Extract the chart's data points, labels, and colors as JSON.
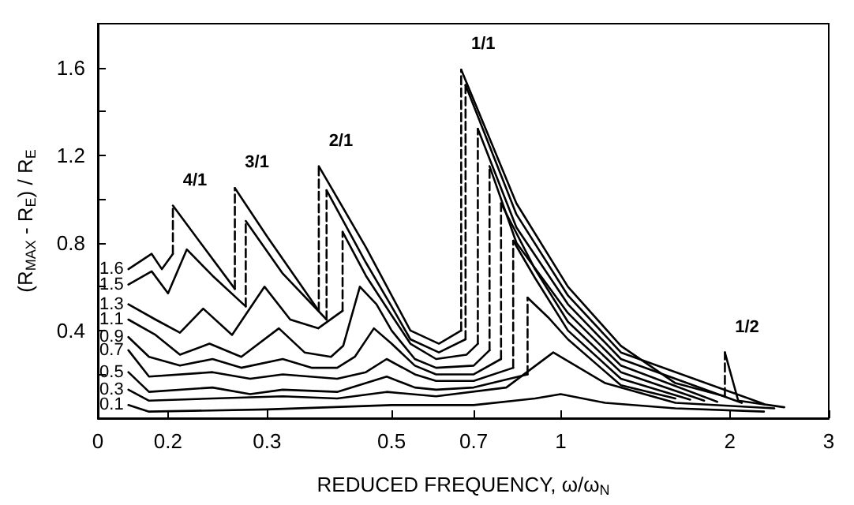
{
  "chart_data": {
    "type": "line",
    "xlabel": "REDUCED FREQUENCY, ω/ω$_{N}$",
    "ylabel": "(R$_{MAX}$ - R$_{E}$) / R$_{E}$",
    "log": "x",
    "marker": "none",
    "line_style": "solid",
    "grid": false,
    "xlim": [
      0.15,
      3
    ],
    "xticks": [
      {
        "value": 0.15,
        "label": "0"
      },
      0.2,
      0.3,
      0.5,
      0.7,
      1,
      2,
      3
    ],
    "ylim": [
      0,
      1.8
    ],
    "yticks": [
      {
        "value": 0.2,
        "label": null
      },
      0.4,
      {
        "value": 0.6,
        "label": null
      },
      0.8,
      {
        "value": 1.0,
        "label": null
      },
      1.2,
      {
        "value": 1.4,
        "label": null
      },
      1.6
    ],
    "annotations": [
      {
        "text": "4/1",
        "x": 0.204,
        "y": 0.97
      },
      {
        "text": "3/1",
        "x": 0.263,
        "y": 1.05
      },
      {
        "text": "2/1",
        "x": 0.371,
        "y": 1.15
      },
      {
        "text": "1/1",
        "x": 0.665,
        "y": 1.59
      },
      {
        "text": "1/2",
        "x": 1.96,
        "y": 0.3
      }
    ],
    "series": [
      {
        "name": "1.6",
        "color": "#000000",
        "x": [
          0.17,
          0.187,
          0.195,
          0.204
        ],
        "values": [
          0.68,
          0.75,
          0.68,
          0.75
        ]
      },
      {
        "color": "#000000",
        "x": [
          0.204,
          0.23,
          0.263
        ],
        "values": [
          0.97,
          0.79,
          0.59
        ]
      },
      {
        "color": "#000000",
        "x": [
          0.263,
          0.3,
          0.371
        ],
        "values": [
          1.05,
          0.83,
          0.49
        ]
      },
      {
        "color": "#000000",
        "x": [
          0.371,
          0.45,
          0.5,
          0.54,
          0.607,
          0.665
        ],
        "values": [
          1.15,
          0.78,
          0.56,
          0.4,
          0.34,
          0.4
        ]
      },
      {
        "color": "#000000",
        "x": [
          0.665,
          0.834,
          1.03,
          1.28,
          1.6,
          1.96
        ],
        "values": [
          1.59,
          0.98,
          0.6,
          0.33,
          0.16,
          0.1
        ]
      },
      {
        "color": "#000000",
        "x": [
          1.96,
          2.07,
          2.5
        ],
        "values": [
          0.3,
          0.08,
          0.05
        ]
      },
      {
        "name": "1.5",
        "color": "#000000",
        "x": [
          0.17,
          0.187,
          0.2,
          0.216,
          0.24,
          0.275
        ],
        "values": [
          0.61,
          0.67,
          0.57,
          0.77,
          0.65,
          0.51
        ]
      },
      {
        "color": "#000000",
        "x": [
          0.275,
          0.32,
          0.383
        ],
        "values": [
          0.9,
          0.66,
          0.45
        ]
      },
      {
        "color": "#000000",
        "x": [
          0.383,
          0.45,
          0.5,
          0.54,
          0.607,
          0.677
        ],
        "values": [
          1.04,
          0.71,
          0.51,
          0.36,
          0.3,
          0.36
        ]
      },
      {
        "color": "#000000",
        "x": [
          0.677,
          0.834,
          1.03,
          1.28,
          2.3
        ],
        "values": [
          1.52,
          0.93,
          0.56,
          0.3,
          0.065
        ]
      },
      {
        "name": "1.3",
        "color": "#000000",
        "x": [
          0.17,
          0.19,
          0.21,
          0.231,
          0.26,
          0.297,
          0.33,
          0.37,
          0.409
        ],
        "values": [
          0.52,
          0.45,
          0.39,
          0.5,
          0.38,
          0.6,
          0.45,
          0.41,
          0.49
        ]
      },
      {
        "color": "#000000",
        "x": [
          0.409,
          0.45,
          0.5,
          0.54,
          0.6,
          0.68,
          0.712
        ],
        "values": [
          0.85,
          0.65,
          0.47,
          0.34,
          0.27,
          0.29,
          0.34
        ]
      },
      {
        "color": "#000000",
        "x": [
          0.712,
          0.834,
          1.03,
          1.28,
          2.1
        ],
        "values": [
          1.32,
          0.87,
          0.52,
          0.27,
          0.07
        ]
      },
      {
        "name": "1.1",
        "color": "#000000",
        "x": [
          0.17,
          0.19,
          0.21,
          0.237,
          0.27,
          0.315,
          0.35,
          0.39,
          0.41,
          0.439,
          0.47,
          0.5,
          0.55,
          0.6,
          0.7,
          0.747
        ],
        "values": [
          0.45,
          0.38,
          0.29,
          0.34,
          0.28,
          0.41,
          0.3,
          0.28,
          0.33,
          0.6,
          0.52,
          0.4,
          0.27,
          0.23,
          0.24,
          0.31
        ]
      },
      {
        "color": "#000000",
        "x": [
          0.747,
          0.834,
          1.03,
          1.28,
          1.9
        ],
        "values": [
          1.15,
          0.8,
          0.48,
          0.24,
          0.075
        ]
      },
      {
        "name": "0.9",
        "color": "#000000",
        "x": [
          0.17,
          0.185,
          0.21,
          0.24,
          0.27,
          0.32,
          0.36,
          0.4,
          0.43,
          0.465,
          0.5,
          0.55,
          0.6,
          0.7,
          0.783
        ],
        "values": [
          0.37,
          0.28,
          0.24,
          0.27,
          0.23,
          0.27,
          0.23,
          0.23,
          0.28,
          0.41,
          0.34,
          0.24,
          0.2,
          0.2,
          0.27
        ]
      },
      {
        "color": "#000000",
        "x": [
          0.783,
          0.9,
          1.03,
          1.28,
          1.8
        ],
        "values": [
          0.98,
          0.68,
          0.44,
          0.21,
          0.08
        ]
      },
      {
        "name": "0.7",
        "color": "#000000",
        "x": [
          0.17,
          0.185,
          0.24,
          0.28,
          0.32,
          0.4,
          0.45,
          0.49,
          0.55,
          0.6,
          0.7,
          0.823
        ],
        "values": [
          0.31,
          0.19,
          0.21,
          0.18,
          0.2,
          0.18,
          0.21,
          0.27,
          0.2,
          0.17,
          0.17,
          0.23
        ]
      },
      {
        "color": "#000000",
        "x": [
          0.823,
          0.9,
          1.03,
          1.28,
          1.7
        ],
        "values": [
          0.81,
          0.64,
          0.4,
          0.18,
          0.085
        ]
      },
      {
        "name": "0.5",
        "color": "#000000",
        "x": [
          0.17,
          0.185,
          0.24,
          0.28,
          0.32,
          0.4,
          0.49,
          0.55,
          0.6,
          0.7,
          0.873
        ],
        "values": [
          0.21,
          0.12,
          0.14,
          0.11,
          0.13,
          0.12,
          0.19,
          0.14,
          0.13,
          0.14,
          0.2
        ]
      },
      {
        "color": "#000000",
        "x": [
          0.873,
          0.95,
          1.03,
          1.28,
          1.6
        ],
        "values": [
          0.55,
          0.46,
          0.36,
          0.15,
          0.09
        ]
      },
      {
        "name": "0.3",
        "color": "#000000",
        "x": [
          0.17,
          0.185,
          0.24,
          0.32,
          0.4,
          0.49,
          0.6,
          0.8,
          0.97,
          1.2,
          1.6,
          2.4
        ],
        "values": [
          0.13,
          0.08,
          0.09,
          0.1,
          0.09,
          0.12,
          0.1,
          0.14,
          0.3,
          0.16,
          0.07,
          0.045
        ]
      },
      {
        "name": "0.1",
        "color": "#000000",
        "x": [
          0.17,
          0.185,
          0.3,
          0.5,
          0.7,
          0.9,
          1.0,
          1.2,
          1.6,
          2.3
        ],
        "values": [
          0.06,
          0.03,
          0.04,
          0.06,
          0.06,
          0.09,
          0.11,
          0.07,
          0.045,
          0.03
        ]
      },
      {
        "color": "#000000",
        "line_style": "dashed",
        "x": [
          0.204,
          0.204
        ],
        "values": [
          0.75,
          0.97
        ]
      },
      {
        "color": "#000000",
        "line_style": "dashed",
        "x": [
          0.263,
          0.263
        ],
        "values": [
          0.59,
          1.05
        ]
      },
      {
        "color": "#000000",
        "line_style": "dashed",
        "x": [
          0.371,
          0.371
        ],
        "values": [
          0.49,
          1.15
        ]
      },
      {
        "color": "#000000",
        "line_style": "dashed",
        "x": [
          0.665,
          0.665
        ],
        "values": [
          0.4,
          1.59
        ]
      },
      {
        "color": "#000000",
        "line_style": "dashed",
        "x": [
          1.96,
          1.96
        ],
        "values": [
          0.1,
          0.3
        ]
      },
      {
        "color": "#000000",
        "line_style": "dashed",
        "x": [
          0.275,
          0.275
        ],
        "values": [
          0.51,
          0.9
        ]
      },
      {
        "color": "#000000",
        "line_style": "dashed",
        "x": [
          0.383,
          0.383
        ],
        "values": [
          0.45,
          1.04
        ]
      },
      {
        "color": "#000000",
        "line_style": "dashed",
        "x": [
          0.677,
          0.677
        ],
        "values": [
          0.36,
          1.52
        ]
      },
      {
        "color": "#000000",
        "line_style": "dashed",
        "x": [
          0.409,
          0.409
        ],
        "values": [
          0.49,
          0.85
        ]
      },
      {
        "color": "#000000",
        "line_style": "dashed",
        "x": [
          0.712,
          0.712
        ],
        "values": [
          0.34,
          1.32
        ]
      },
      {
        "color": "#000000",
        "line_style": "dashed",
        "x": [
          0.747,
          0.747
        ],
        "values": [
          0.31,
          1.15
        ]
      },
      {
        "color": "#000000",
        "line_style": "dashed",
        "x": [
          0.783,
          0.783
        ],
        "values": [
          0.27,
          0.98
        ]
      },
      {
        "color": "#000000",
        "line_style": "dashed",
        "x": [
          0.823,
          0.823
        ],
        "values": [
          0.23,
          0.81
        ]
      },
      {
        "color": "#000000",
        "line_style": "dashed",
        "x": [
          0.873,
          0.873
        ],
        "values": [
          0.2,
          0.55
        ]
      }
    ]
  }
}
